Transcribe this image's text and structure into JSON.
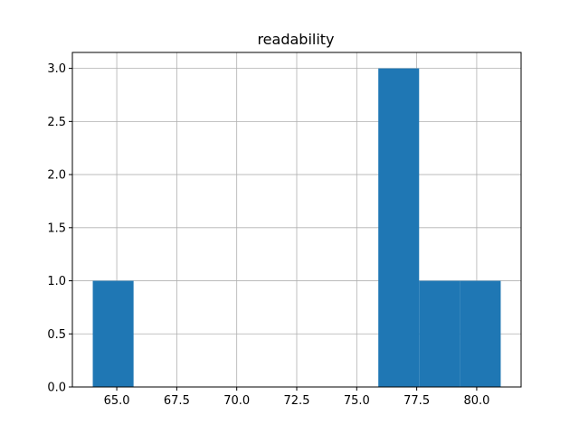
{
  "chart_data": {
    "type": "bar",
    "subtype": "histogram",
    "title": "readability",
    "xlabel": "",
    "ylabel": "",
    "bins": [
      {
        "start": 64.0,
        "end": 65.7,
        "count": 1
      },
      {
        "start": 65.7,
        "end": 67.4,
        "count": 0
      },
      {
        "start": 67.4,
        "end": 69.1,
        "count": 0
      },
      {
        "start": 69.1,
        "end": 70.8,
        "count": 0
      },
      {
        "start": 70.8,
        "end": 72.5,
        "count": 0
      },
      {
        "start": 72.5,
        "end": 74.2,
        "count": 0
      },
      {
        "start": 74.2,
        "end": 75.9,
        "count": 0
      },
      {
        "start": 75.9,
        "end": 77.6,
        "count": 3
      },
      {
        "start": 77.6,
        "end": 79.3,
        "count": 1
      },
      {
        "start": 79.3,
        "end": 81.0,
        "count": 1
      }
    ],
    "xlim": [
      63.15,
      81.85
    ],
    "ylim": [
      0,
      3.15
    ],
    "xticks": [
      65.0,
      67.5,
      70.0,
      72.5,
      75.0,
      77.5,
      80.0
    ],
    "xtick_labels": [
      "65.0",
      "67.5",
      "70.0",
      "72.5",
      "75.0",
      "77.5",
      "80.0"
    ],
    "yticks": [
      0.0,
      0.5,
      1.0,
      1.5,
      2.0,
      2.5,
      3.0
    ],
    "ytick_labels": [
      "0.0",
      "0.5",
      "1.0",
      "1.5",
      "2.0",
      "2.5",
      "3.0"
    ],
    "grid": true,
    "bar_color": "#1f77b4",
    "grid_color": "#b0b0b0"
  }
}
